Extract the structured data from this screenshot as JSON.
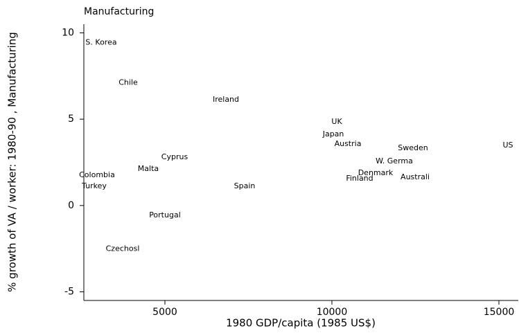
{
  "chart_data": {
    "type": "scatter",
    "title": "Manufacturing",
    "x_label": "1980 GDP/capita (1985 US$)",
    "y_label": "% growth of VA / worker: 1980-90 , Manufacturing",
    "labels": [
      "S. Korea",
      "Chile",
      "Ireland",
      "UK",
      "Japan",
      "Austria",
      "Sweden",
      "US",
      "W. Germa",
      "Cyprus",
      "Malta",
      "Colombia",
      "Denmark",
      "Finland",
      "Australi",
      "Turkey",
      "Spain",
      "Portugal",
      "Czechosl"
    ],
    "x": [
      3092,
      3901,
      6826,
      10146,
      10043,
      10478,
      12428,
      15270,
      11868,
      5291,
      4502,
      2967,
      11307,
      10830,
      12490,
      2884,
      7386,
      5000,
      3735
    ],
    "y": [
      9.44,
      7.12,
      6.12,
      4.84,
      4.12,
      3.56,
      3.32,
      3.48,
      2.56,
      2.8,
      2.12,
      1.76,
      1.88,
      1.56,
      1.64,
      1.12,
      1.12,
      -0.56,
      -2.52
    ],
    "color": "#000000",
    "xlim": [
      2573,
      15581
    ],
    "xticks": [
      5000,
      10000,
      15000
    ],
    "ylim": [
      -5.5,
      10.5
    ],
    "yticks": [
      -5,
      0,
      5,
      10
    ]
  }
}
